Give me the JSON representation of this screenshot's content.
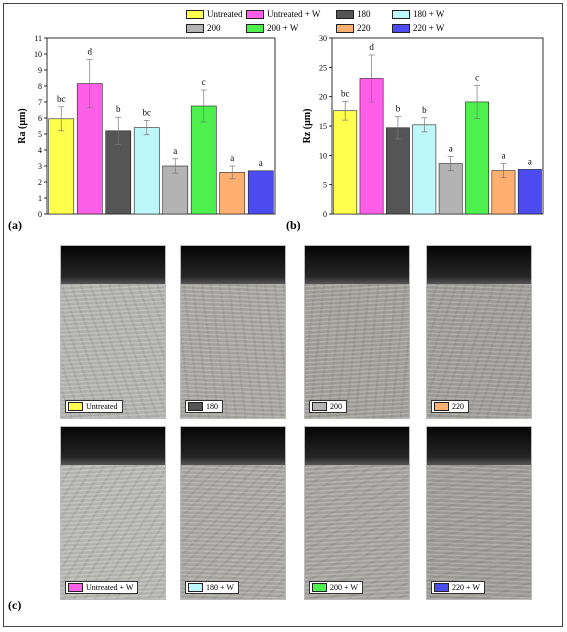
{
  "legend": [
    {
      "label": "Untreated",
      "color": "#ffff4d"
    },
    {
      "label": "Untreated + W",
      "color": "#ff5ee8"
    },
    {
      "label": "180",
      "color": "#555555"
    },
    {
      "label": "180 + W",
      "color": "#bdf7f9"
    },
    {
      "label": "200",
      "color": "#b3b3b3"
    },
    {
      "label": "200 + W",
      "color": "#4df04d"
    },
    {
      "label": "220",
      "color": "#ffb070"
    },
    {
      "label": "220 + W",
      "color": "#4b4bf0"
    }
  ],
  "panel_labels": {
    "a": "(a)",
    "b": "(b)",
    "c": "(c)"
  },
  "chart_data": [
    {
      "type": "bar",
      "categories": [
        "Untreated",
        "Untreated + W",
        "180",
        "180 + W",
        "200",
        "200 + W",
        "220",
        "220 + W"
      ],
      "values": [
        5.95,
        8.15,
        5.2,
        5.4,
        3.0,
        6.75,
        2.6,
        2.7
      ],
      "errors": [
        0.75,
        1.5,
        0.85,
        0.45,
        0.45,
        1.0,
        0.4,
        0.0
      ],
      "letters": [
        "bc",
        "d",
        "b",
        "bc",
        "a",
        "c",
        "a",
        "a"
      ],
      "ylabel": "Ra (μm)",
      "ylim": [
        0,
        11
      ],
      "yticks": [
        "0",
        "1",
        "2",
        "3",
        "4",
        "5",
        "6",
        "7",
        "8",
        "9",
        "10",
        "11"
      ]
    },
    {
      "type": "bar",
      "categories": [
        "Untreated",
        "Untreated + W",
        "180",
        "180 + W",
        "200",
        "200 + W",
        "220",
        "220 + W"
      ],
      "values": [
        17.6,
        23.1,
        14.7,
        15.2,
        8.6,
        19.1,
        7.4,
        7.6
      ],
      "errors": [
        1.6,
        4.0,
        1.9,
        1.2,
        1.2,
        2.8,
        1.2,
        0.0
      ],
      "letters": [
        "bc",
        "d",
        "b",
        "b",
        "a",
        "c",
        "a",
        "a"
      ],
      "ylabel": "Rz (μm)",
      "ylim": [
        0,
        30
      ],
      "yticks": [
        "0",
        "5",
        "10",
        "15",
        "20",
        "25",
        "30"
      ]
    }
  ],
  "photos": [
    {
      "label": "Untreated",
      "color": "#ffff4d"
    },
    {
      "label": "180",
      "color": "#555555"
    },
    {
      "label": "200",
      "color": "#b3b3b3"
    },
    {
      "label": "220",
      "color": "#ffb070"
    },
    {
      "label": "Untreated + W",
      "color": "#ff5ee8"
    },
    {
      "label": "180 + W",
      "color": "#bdf7f9"
    },
    {
      "label": "200 + W",
      "color": "#4df04d"
    },
    {
      "label": "220 + W",
      "color": "#4b4bf0"
    }
  ]
}
